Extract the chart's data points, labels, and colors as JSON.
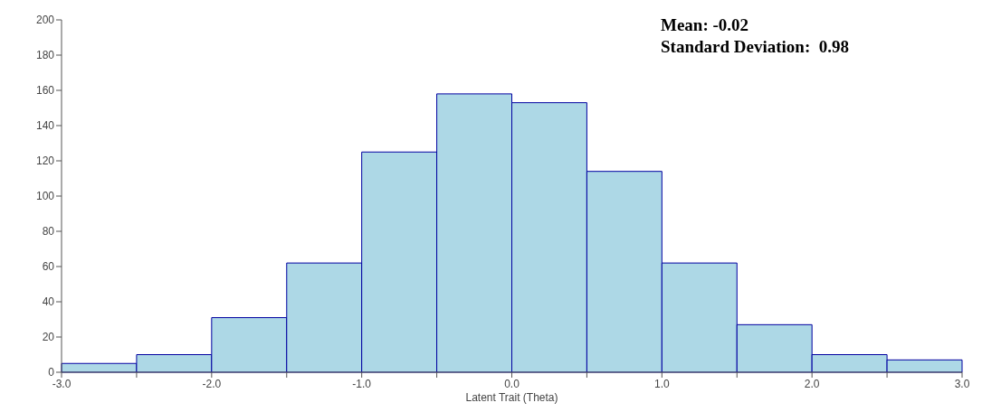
{
  "chart_data": {
    "type": "histogram",
    "xlabel": "Latent Trait (Theta)",
    "annotations": [
      "Mean: -0.02",
      "Standard Deviation:  0.98"
    ],
    "bins": [
      -3.0,
      -2.5,
      -2.0,
      -1.5,
      -1.0,
      -0.5,
      0.0,
      0.5,
      1.0,
      1.5,
      2.0,
      2.5,
      3.0
    ],
    "values": [
      5,
      10,
      31,
      62,
      125,
      158,
      153,
      114,
      62,
      27,
      10,
      7
    ],
    "color": "#add8e6",
    "xlim": [
      -3,
      3
    ],
    "xticks": [
      {
        "value": -3,
        "label": "-3.0"
      },
      {
        "value": -2.5,
        "label": null
      },
      {
        "value": -2,
        "label": "-2.0"
      },
      {
        "value": -1.5,
        "label": null
      },
      {
        "value": -1,
        "label": "-1.0"
      },
      {
        "value": -0.5,
        "label": null
      },
      {
        "value": 0,
        "label": "0.0"
      },
      {
        "value": 0.5,
        "label": null
      },
      {
        "value": 1,
        "label": "1.0"
      },
      {
        "value": 1.5,
        "label": null
      },
      {
        "value": 2,
        "label": "2.0"
      },
      {
        "value": 2.5,
        "label": null
      },
      {
        "value": 3,
        "label": "3.0"
      }
    ],
    "ylim": [
      0,
      200
    ],
    "yticks": [
      0,
      20,
      40,
      60,
      80,
      100,
      120,
      140,
      160,
      180,
      200
    ],
    "grid": false
  }
}
